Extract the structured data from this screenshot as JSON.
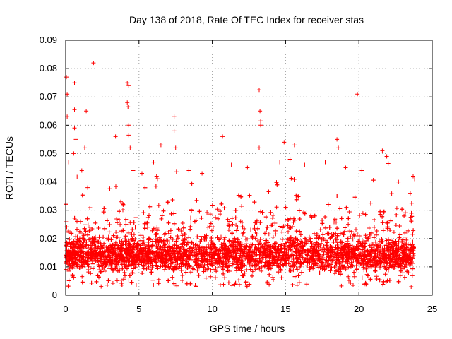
{
  "chart_data": {
    "type": "scatter",
    "title": "Day 138 of 2018, Rate Of TEC Index for receiver stas",
    "xlabel": "GPS time / hours",
    "ylabel": "ROTI / TECUs",
    "xlim": [
      0,
      25
    ],
    "ylim": [
      0,
      0.09
    ],
    "x_ticks": [
      0,
      5,
      10,
      15,
      20,
      25
    ],
    "y_ticks": [
      0,
      0.01,
      0.02,
      0.03,
      0.04,
      0.05,
      0.06,
      0.07,
      0.08,
      0.09
    ],
    "x_tick_labels": [
      "0",
      "5",
      "10",
      "15",
      "20",
      "25"
    ],
    "y_tick_labels": [
      "0",
      "0.01",
      "0.02",
      "0.03",
      "0.04",
      "0.05",
      "0.06",
      "0.07",
      "0.08",
      "0.09"
    ],
    "grid": true,
    "marker": "+",
    "color": "#ff0000",
    "band": {
      "x_range": [
        0,
        23.75
      ],
      "typical_y_range": [
        0.006,
        0.022
      ],
      "min_y": 0.003
    },
    "outliers": [
      {
        "x": 0.05,
        "y": 0.077
      },
      {
        "x": 0.1,
        "y": 0.071
      },
      {
        "x": 0.1,
        "y": 0.063
      },
      {
        "x": 0.6,
        "y": 0.075
      },
      {
        "x": 0.6,
        "y": 0.0655
      },
      {
        "x": 0.6,
        "y": 0.059
      },
      {
        "x": 0.55,
        "y": 0.05
      },
      {
        "x": 0.7,
        "y": 0.055
      },
      {
        "x": 1.4,
        "y": 0.065
      },
      {
        "x": 1.9,
        "y": 0.082
      },
      {
        "x": 1.3,
        "y": 0.052
      },
      {
        "x": 3.4,
        "y": 0.056
      },
      {
        "x": 4.2,
        "y": 0.075
      },
      {
        "x": 4.3,
        "y": 0.074
      },
      {
        "x": 4.2,
        "y": 0.068
      },
      {
        "x": 4.25,
        "y": 0.0665
      },
      {
        "x": 4.3,
        "y": 0.06
      },
      {
        "x": 4.3,
        "y": 0.0565
      },
      {
        "x": 4.4,
        "y": 0.052
      },
      {
        "x": 6.5,
        "y": 0.053
      },
      {
        "x": 7.4,
        "y": 0.063
      },
      {
        "x": 7.4,
        "y": 0.058
      },
      {
        "x": 7.5,
        "y": 0.052
      },
      {
        "x": 10.7,
        "y": 0.056
      },
      {
        "x": 13.2,
        "y": 0.0725
      },
      {
        "x": 13.25,
        "y": 0.065
      },
      {
        "x": 13.3,
        "y": 0.0615
      },
      {
        "x": 13.3,
        "y": 0.06
      },
      {
        "x": 13.2,
        "y": 0.052
      },
      {
        "x": 14.9,
        "y": 0.054
      },
      {
        "x": 15.6,
        "y": 0.053
      },
      {
        "x": 18.5,
        "y": 0.055
      },
      {
        "x": 18.6,
        "y": 0.052
      },
      {
        "x": 19.9,
        "y": 0.071
      },
      {
        "x": 21.6,
        "y": 0.051
      },
      {
        "x": 21.9,
        "y": 0.049
      },
      {
        "x": 22.0,
        "y": 0.0465
      },
      {
        "x": 23.7,
        "y": 0.042
      },
      {
        "x": 23.8,
        "y": 0.041
      },
      {
        "x": 0.2,
        "y": 0.047
      },
      {
        "x": 1.1,
        "y": 0.044
      },
      {
        "x": 1.5,
        "y": 0.038
      },
      {
        "x": 4.6,
        "y": 0.044
      },
      {
        "x": 5.2,
        "y": 0.043
      },
      {
        "x": 6.2,
        "y": 0.042
      },
      {
        "x": 8.4,
        "y": 0.044
      },
      {
        "x": 9.3,
        "y": 0.043
      },
      {
        "x": 11.3,
        "y": 0.046
      },
      {
        "x": 12.4,
        "y": 0.045
      },
      {
        "x": 14.6,
        "y": 0.047
      },
      {
        "x": 15.3,
        "y": 0.048
      },
      {
        "x": 16.3,
        "y": 0.046
      },
      {
        "x": 17.7,
        "y": 0.047
      },
      {
        "x": 19.1,
        "y": 0.045
      },
      {
        "x": 20.2,
        "y": 0.044
      },
      {
        "x": 22.7,
        "y": 0.04
      },
      {
        "x": 23.5,
        "y": 0.036
      }
    ]
  }
}
